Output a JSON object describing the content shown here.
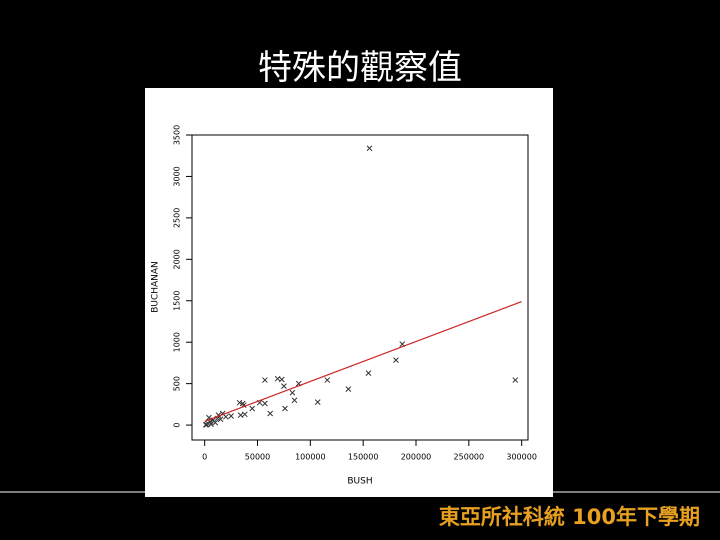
{
  "slide": {
    "title": "特殊的觀察值",
    "footer": "東亞所社科統 100年下學期"
  },
  "chart_data": {
    "type": "scatter",
    "x_label": "BUSH",
    "y_label": "BUCHANAN",
    "xlim": [
      -12000,
      306000
    ],
    "ylim": [
      -180,
      3500
    ],
    "xticks": [
      0,
      50000,
      100000,
      150000,
      200000,
      250000,
      300000
    ],
    "yticks": [
      0,
      500,
      1000,
      1500,
      2000,
      2500,
      3000,
      3500
    ],
    "color": "#333333",
    "x": [
      156000,
      294000,
      187000,
      181000,
      155000,
      136000,
      116000,
      107000,
      89000,
      85000,
      83000,
      75000,
      73000,
      69000,
      76000,
      57000,
      52000,
      57000,
      62000,
      45000,
      36000,
      33000,
      37000,
      34000,
      38000,
      25000,
      20000,
      15000,
      12000,
      8000,
      5000,
      3000,
      4000,
      10000,
      6000,
      2000,
      1000,
      13000,
      17000
    ],
    "y": [
      3340,
      543,
      977,
      784,
      627,
      434,
      543,
      277,
      500,
      300,
      390,
      470,
      550,
      560,
      200,
      543,
      270,
      260,
      140,
      200,
      260,
      270,
      240,
      120,
      130,
      110,
      100,
      70,
      80,
      60,
      40,
      20,
      90,
      30,
      10,
      5,
      3,
      120,
      140
    ],
    "fit_line": {
      "color": "#cc2222",
      "x": [
        0,
        300000
      ],
      "y": [
        45,
        1490
      ]
    }
  }
}
